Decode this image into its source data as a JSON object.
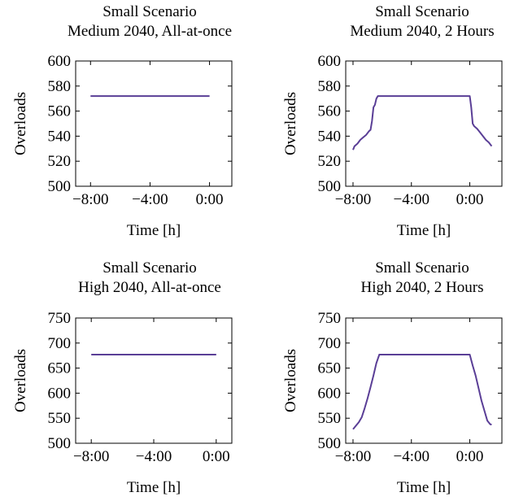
{
  "series_color": "#5a3e96",
  "chart_data": [
    {
      "type": "line",
      "title": [
        "Small Scenario",
        "Medium 2040, All-at-once"
      ],
      "xlabel": "Time [h]",
      "ylabel": "Overloads",
      "xlim": [
        -9,
        1.5
      ],
      "ylim": [
        500,
        600
      ],
      "xticks": [
        {
          "value": -8,
          "label": "−8:00"
        },
        {
          "value": -4,
          "label": "−4:00"
        },
        {
          "value": 0,
          "label": "0:00"
        }
      ],
      "yticks": [
        500,
        520,
        540,
        560,
        580,
        600
      ],
      "grid": false,
      "series": [
        {
          "x": [
            -8,
            0
          ],
          "y": [
            572,
            572
          ]
        }
      ]
    },
    {
      "type": "line",
      "title": [
        "Small Scenario",
        "Medium 2040, 2 Hours"
      ],
      "xlabel": "Time [h]",
      "ylabel": "Overloads",
      "xlim": [
        -8.5,
        2.2
      ],
      "ylim": [
        500,
        600
      ],
      "xticks": [
        {
          "value": -8,
          "label": "−8:00"
        },
        {
          "value": -4,
          "label": "−4:00"
        },
        {
          "value": 0,
          "label": "0:00"
        }
      ],
      "yticks": [
        500,
        520,
        540,
        560,
        580,
        600
      ],
      "grid": false,
      "series": [
        {
          "x": [
            -8,
            -7.9,
            -7.7,
            -7.5,
            -7.3,
            -7.1,
            -6.9,
            -6.8,
            -6.7,
            -6.6,
            -6.5,
            -6.4,
            -6.3,
            -6,
            -4,
            -2,
            -1,
            0,
            0.1,
            0.2,
            0.3,
            0.5,
            0.7,
            0.9,
            1.1,
            1.3,
            1.5
          ],
          "y": [
            529,
            532,
            534,
            537,
            539,
            541,
            544,
            545,
            552,
            563,
            565,
            570,
            572,
            572,
            572,
            572,
            572,
            572,
            563,
            550,
            548,
            546,
            543,
            540,
            537,
            535,
            532
          ]
        }
      ]
    },
    {
      "type": "line",
      "title": [
        "Small Scenario",
        "High 2040, All-at-once"
      ],
      "xlabel": "Time [h]",
      "ylabel": "Overloads",
      "xlim": [
        -9,
        1
      ],
      "ylim": [
        500,
        750
      ],
      "xticks": [
        {
          "value": -8,
          "label": "−8:00"
        },
        {
          "value": -4,
          "label": "−4:00"
        },
        {
          "value": 0,
          "label": "0:00"
        }
      ],
      "yticks": [
        500,
        550,
        600,
        650,
        700,
        750
      ],
      "grid": false,
      "series": [
        {
          "x": [
            -8,
            0
          ],
          "y": [
            677,
            677
          ]
        }
      ]
    },
    {
      "type": "line",
      "title": [
        "Small Scenario",
        "High 2040, 2 Hours"
      ],
      "xlabel": "Time [h]",
      "ylabel": "Overloads",
      "xlim": [
        -8.5,
        2.2
      ],
      "ylim": [
        500,
        750
      ],
      "xticks": [
        {
          "value": -8,
          "label": "−8:00"
        },
        {
          "value": -4,
          "label": "−4:00"
        },
        {
          "value": 0,
          "label": "0:00"
        }
      ],
      "yticks": [
        500,
        550,
        600,
        650,
        700,
        750
      ],
      "grid": false,
      "series": [
        {
          "x": [
            -8,
            -7.8,
            -7.6,
            -7.4,
            -7.2,
            -7.0,
            -6.8,
            -6.6,
            -6.4,
            -6.2,
            -6.0,
            -4,
            -2,
            -1,
            0,
            0.2,
            0.4,
            0.6,
            0.8,
            1.0,
            1.2,
            1.4,
            1.5
          ],
          "y": [
            528,
            535,
            542,
            552,
            570,
            590,
            612,
            635,
            660,
            677,
            677,
            677,
            677,
            677,
            677,
            655,
            635,
            610,
            585,
            565,
            545,
            538,
            537
          ]
        }
      ]
    }
  ]
}
